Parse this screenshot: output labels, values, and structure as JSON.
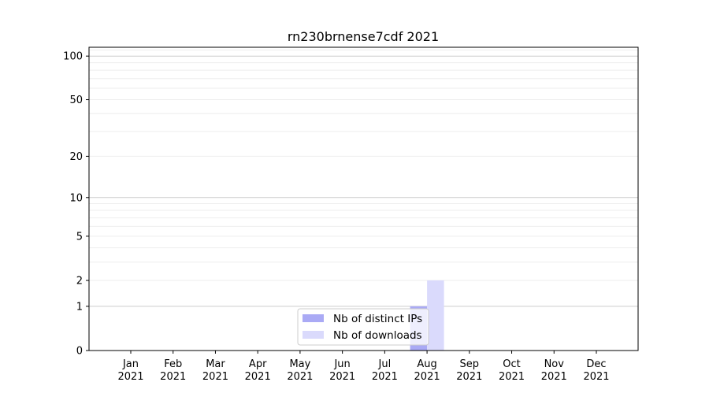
{
  "chart_data": {
    "type": "bar",
    "title": "rn230brnense7cdf 2021",
    "xlabel": "",
    "ylabel": "",
    "yscale": "log(1+y)",
    "ylim": [
      0,
      116
    ],
    "yticks": [
      0,
      1,
      2,
      5,
      10,
      20,
      50,
      100
    ],
    "grid": true,
    "legend_position": "lower-center",
    "categories": [
      [
        "Jan",
        "2021"
      ],
      [
        "Feb",
        "2021"
      ],
      [
        "Mar",
        "2021"
      ],
      [
        "Apr",
        "2021"
      ],
      [
        "May",
        "2021"
      ],
      [
        "Jun",
        "2021"
      ],
      [
        "Jul",
        "2021"
      ],
      [
        "Aug",
        "2021"
      ],
      [
        "Sep",
        "2021"
      ],
      [
        "Oct",
        "2021"
      ],
      [
        "Nov",
        "2021"
      ],
      [
        "Dec",
        "2021"
      ]
    ],
    "series": [
      {
        "name": "Nb of distinct IPs",
        "color": "#aaaaf5",
        "values": [
          0,
          0,
          0,
          0,
          0,
          0,
          0,
          1,
          0,
          0,
          0,
          0
        ]
      },
      {
        "name": "Nb of downloads",
        "color": "#dadafc",
        "values": [
          0,
          0,
          0,
          0,
          0,
          0,
          0,
          2,
          0,
          0,
          0,
          0
        ]
      }
    ]
  }
}
